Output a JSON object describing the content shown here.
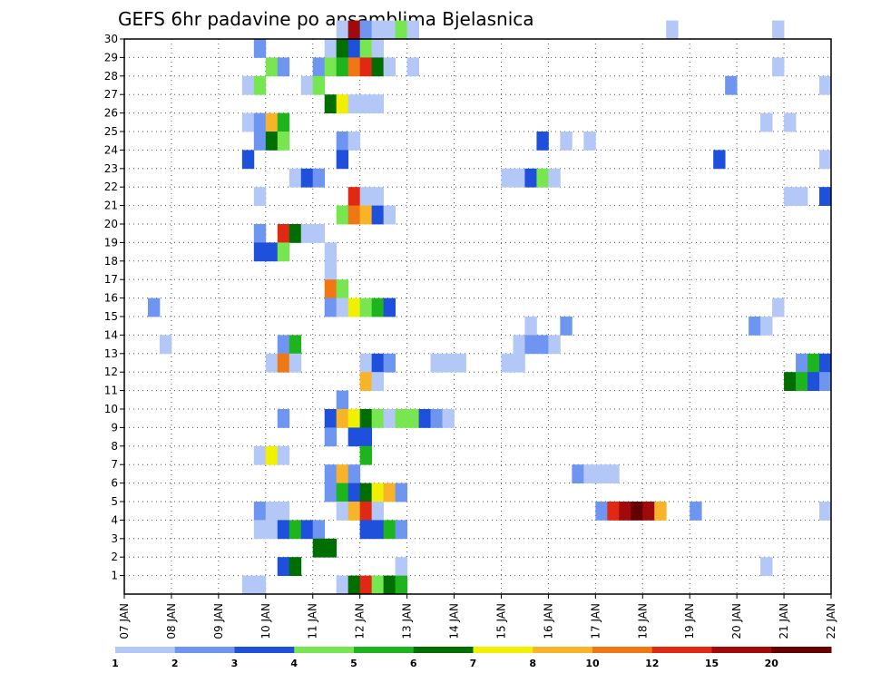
{
  "chart_data": {
    "type": "heatmap",
    "title": "GEFS 6hr padavine po ansamblima Bjelasnica",
    "xlabel": "",
    "ylabel": "",
    "x_unit": "6-hour steps from 07 JAN 00Z",
    "xlim": [
      0,
      60
    ],
    "ylim": [
      0,
      30
    ],
    "x_tick_labels": [
      "07 JAN",
      "08 JAN",
      "09 JAN",
      "10 JAN",
      "11 JAN",
      "12 JAN",
      "13 JAN",
      "14 JAN",
      "15 JAN",
      "16 JAN",
      "17 JAN",
      "18 JAN",
      "19 JAN",
      "20 JAN",
      "21 JAN",
      "22 JAN"
    ],
    "y_tick_labels": [
      "1",
      "2",
      "3",
      "4",
      "5",
      "6",
      "7",
      "8",
      "9",
      "10",
      "11",
      "12",
      "13",
      "14",
      "15",
      "16",
      "17",
      "18",
      "19",
      "20",
      "21",
      "22",
      "23",
      "24",
      "25",
      "26",
      "27",
      "28",
      "29",
      "30"
    ],
    "legend": {
      "placement": "bottom",
      "labels": [
        "1",
        "2",
        "3",
        "4",
        "5",
        "6",
        "7",
        "8",
        "10",
        "12",
        "15",
        "20"
      ],
      "colors": [
        "#b4c8f8",
        "#6e96f0",
        "#1e50dc",
        "#78e650",
        "#1eb41e",
        "#006e00",
        "#f0f000",
        "#f8b428",
        "#f07814",
        "#e02814",
        "#a00a0a",
        "#640000"
      ]
    },
    "cells": [
      [
        30,
        18,
        1
      ],
      [
        30,
        19,
        11
      ],
      [
        30,
        20,
        2
      ],
      [
        30,
        21,
        1
      ],
      [
        30,
        22,
        1
      ],
      [
        30,
        23,
        4
      ],
      [
        30,
        24,
        1
      ],
      [
        30,
        46,
        1
      ],
      [
        30,
        55,
        1
      ],
      [
        29,
        11,
        2
      ],
      [
        29,
        17,
        1
      ],
      [
        29,
        18,
        6
      ],
      [
        29,
        19,
        3
      ],
      [
        29,
        20,
        4
      ],
      [
        29,
        21,
        1
      ],
      [
        28,
        12,
        4
      ],
      [
        28,
        13,
        2
      ],
      [
        28,
        16,
        2
      ],
      [
        28,
        17,
        4
      ],
      [
        28,
        18,
        5
      ],
      [
        28,
        19,
        9
      ],
      [
        28,
        20,
        10
      ],
      [
        28,
        21,
        6
      ],
      [
        28,
        22,
        1
      ],
      [
        28,
        24,
        1
      ],
      [
        28,
        55,
        1
      ],
      [
        27,
        10,
        1
      ],
      [
        27,
        11,
        4
      ],
      [
        27,
        15,
        1
      ],
      [
        27,
        16,
        4
      ],
      [
        27,
        51,
        2
      ],
      [
        27,
        59,
        1
      ],
      [
        26,
        17,
        6
      ],
      [
        26,
        18,
        7
      ],
      [
        26,
        19,
        1
      ],
      [
        26,
        20,
        1
      ],
      [
        26,
        21,
        1
      ],
      [
        25,
        10,
        1
      ],
      [
        25,
        11,
        2
      ],
      [
        25,
        12,
        8
      ],
      [
        25,
        13,
        5
      ],
      [
        25,
        54,
        1
      ],
      [
        25,
        56,
        1
      ],
      [
        24,
        11,
        2
      ],
      [
        24,
        12,
        6
      ],
      [
        24,
        13,
        4
      ],
      [
        24,
        18,
        2
      ],
      [
        24,
        19,
        1
      ],
      [
        24,
        35,
        3
      ],
      [
        24,
        37,
        1
      ],
      [
        24,
        39,
        1
      ],
      [
        23,
        10,
        3
      ],
      [
        23,
        18,
        3
      ],
      [
        23,
        50,
        3
      ],
      [
        23,
        59,
        1
      ],
      [
        22,
        14,
        1
      ],
      [
        22,
        15,
        3
      ],
      [
        22,
        16,
        2
      ],
      [
        22,
        32,
        1
      ],
      [
        22,
        33,
        1
      ],
      [
        22,
        34,
        3
      ],
      [
        22,
        35,
        4
      ],
      [
        22,
        36,
        1
      ],
      [
        21,
        11,
        1
      ],
      [
        21,
        19,
        10
      ],
      [
        21,
        20,
        1
      ],
      [
        21,
        21,
        1
      ],
      [
        21,
        56,
        1
      ],
      [
        21,
        57,
        1
      ],
      [
        21,
        59,
        3
      ],
      [
        20,
        18,
        4
      ],
      [
        20,
        19,
        9
      ],
      [
        20,
        20,
        8
      ],
      [
        20,
        21,
        3
      ],
      [
        20,
        22,
        1
      ],
      [
        19,
        11,
        2
      ],
      [
        19,
        13,
        10
      ],
      [
        19,
        14,
        6
      ],
      [
        19,
        15,
        1
      ],
      [
        19,
        16,
        1
      ],
      [
        18,
        11,
        3
      ],
      [
        18,
        12,
        3
      ],
      [
        18,
        13,
        4
      ],
      [
        18,
        17,
        1
      ],
      [
        17,
        17,
        1
      ],
      [
        16,
        17,
        9
      ],
      [
        16,
        18,
        4
      ],
      [
        15,
        2,
        2
      ],
      [
        15,
        17,
        2
      ],
      [
        15,
        18,
        1
      ],
      [
        15,
        19,
        7
      ],
      [
        15,
        20,
        4
      ],
      [
        15,
        21,
        5
      ],
      [
        15,
        22,
        3
      ],
      [
        15,
        55,
        1
      ],
      [
        14,
        34,
        1
      ],
      [
        14,
        37,
        2
      ],
      [
        14,
        53,
        2
      ],
      [
        14,
        54,
        1
      ],
      [
        13,
        3,
        1
      ],
      [
        13,
        13,
        2
      ],
      [
        13,
        14,
        5
      ],
      [
        13,
        33,
        1
      ],
      [
        13,
        34,
        2
      ],
      [
        13,
        35,
        2
      ],
      [
        13,
        36,
        1
      ],
      [
        12,
        12,
        1
      ],
      [
        12,
        13,
        9
      ],
      [
        12,
        14,
        1
      ],
      [
        12,
        20,
        1
      ],
      [
        12,
        21,
        3
      ],
      [
        12,
        22,
        2
      ],
      [
        12,
        26,
        1
      ],
      [
        12,
        27,
        1
      ],
      [
        12,
        28,
        1
      ],
      [
        12,
        32,
        1
      ],
      [
        12,
        33,
        1
      ],
      [
        12,
        57,
        2
      ],
      [
        12,
        58,
        5
      ],
      [
        12,
        59,
        3
      ],
      [
        11,
        20,
        8
      ],
      [
        11,
        21,
        1
      ],
      [
        11,
        56,
        6
      ],
      [
        11,
        57,
        5
      ],
      [
        11,
        58,
        3
      ],
      [
        11,
        59,
        2
      ],
      [
        10,
        18,
        2
      ],
      [
        9,
        13,
        2
      ],
      [
        9,
        17,
        3
      ],
      [
        9,
        18,
        8
      ],
      [
        9,
        19,
        7
      ],
      [
        9,
        20,
        6
      ],
      [
        9,
        21,
        4
      ],
      [
        9,
        22,
        1
      ],
      [
        9,
        23,
        4
      ],
      [
        9,
        24,
        4
      ],
      [
        9,
        25,
        3
      ],
      [
        9,
        26,
        2
      ],
      [
        9,
        27,
        1
      ],
      [
        8,
        17,
        2
      ],
      [
        8,
        19,
        3
      ],
      [
        8,
        20,
        3
      ],
      [
        7,
        11,
        1
      ],
      [
        7,
        12,
        7
      ],
      [
        7,
        13,
        1
      ],
      [
        7,
        20,
        5
      ],
      [
        6,
        17,
        2
      ],
      [
        6,
        18,
        8
      ],
      [
        6,
        19,
        2
      ],
      [
        6,
        38,
        2
      ],
      [
        6,
        39,
        1
      ],
      [
        6,
        40,
        1
      ],
      [
        6,
        41,
        1
      ],
      [
        5,
        17,
        2
      ],
      [
        5,
        18,
        5
      ],
      [
        5,
        19,
        3
      ],
      [
        5,
        20,
        6
      ],
      [
        5,
        21,
        7
      ],
      [
        5,
        22,
        8
      ],
      [
        5,
        23,
        2
      ],
      [
        4,
        11,
        2
      ],
      [
        4,
        12,
        1
      ],
      [
        4,
        13,
        1
      ],
      [
        4,
        18,
        1
      ],
      [
        4,
        19,
        8
      ],
      [
        4,
        20,
        10
      ],
      [
        4,
        21,
        1
      ],
      [
        4,
        40,
        2
      ],
      [
        4,
        41,
        10
      ],
      [
        4,
        42,
        11
      ],
      [
        4,
        43,
        12
      ],
      [
        4,
        44,
        11
      ],
      [
        4,
        45,
        8
      ],
      [
        4,
        48,
        2
      ],
      [
        4,
        59,
        1
      ],
      [
        3,
        11,
        1
      ],
      [
        3,
        12,
        1
      ],
      [
        3,
        13,
        3
      ],
      [
        3,
        14,
        5
      ],
      [
        3,
        15,
        3
      ],
      [
        3,
        16,
        2
      ],
      [
        3,
        20,
        3
      ],
      [
        3,
        21,
        3
      ],
      [
        3,
        22,
        5
      ],
      [
        3,
        23,
        2
      ],
      [
        2,
        16,
        6
      ],
      [
        2,
        17,
        6
      ],
      [
        1,
        13,
        3
      ],
      [
        1,
        14,
        6
      ],
      [
        1,
        23,
        1
      ],
      [
        1,
        54,
        1
      ],
      [
        0,
        10,
        1
      ],
      [
        0,
        11,
        1
      ],
      [
        0,
        18,
        1
      ],
      [
        0,
        19,
        6
      ],
      [
        0,
        20,
        10
      ],
      [
        0,
        21,
        4
      ],
      [
        0,
        22,
        6
      ],
      [
        0,
        23,
        5
      ]
    ]
  }
}
